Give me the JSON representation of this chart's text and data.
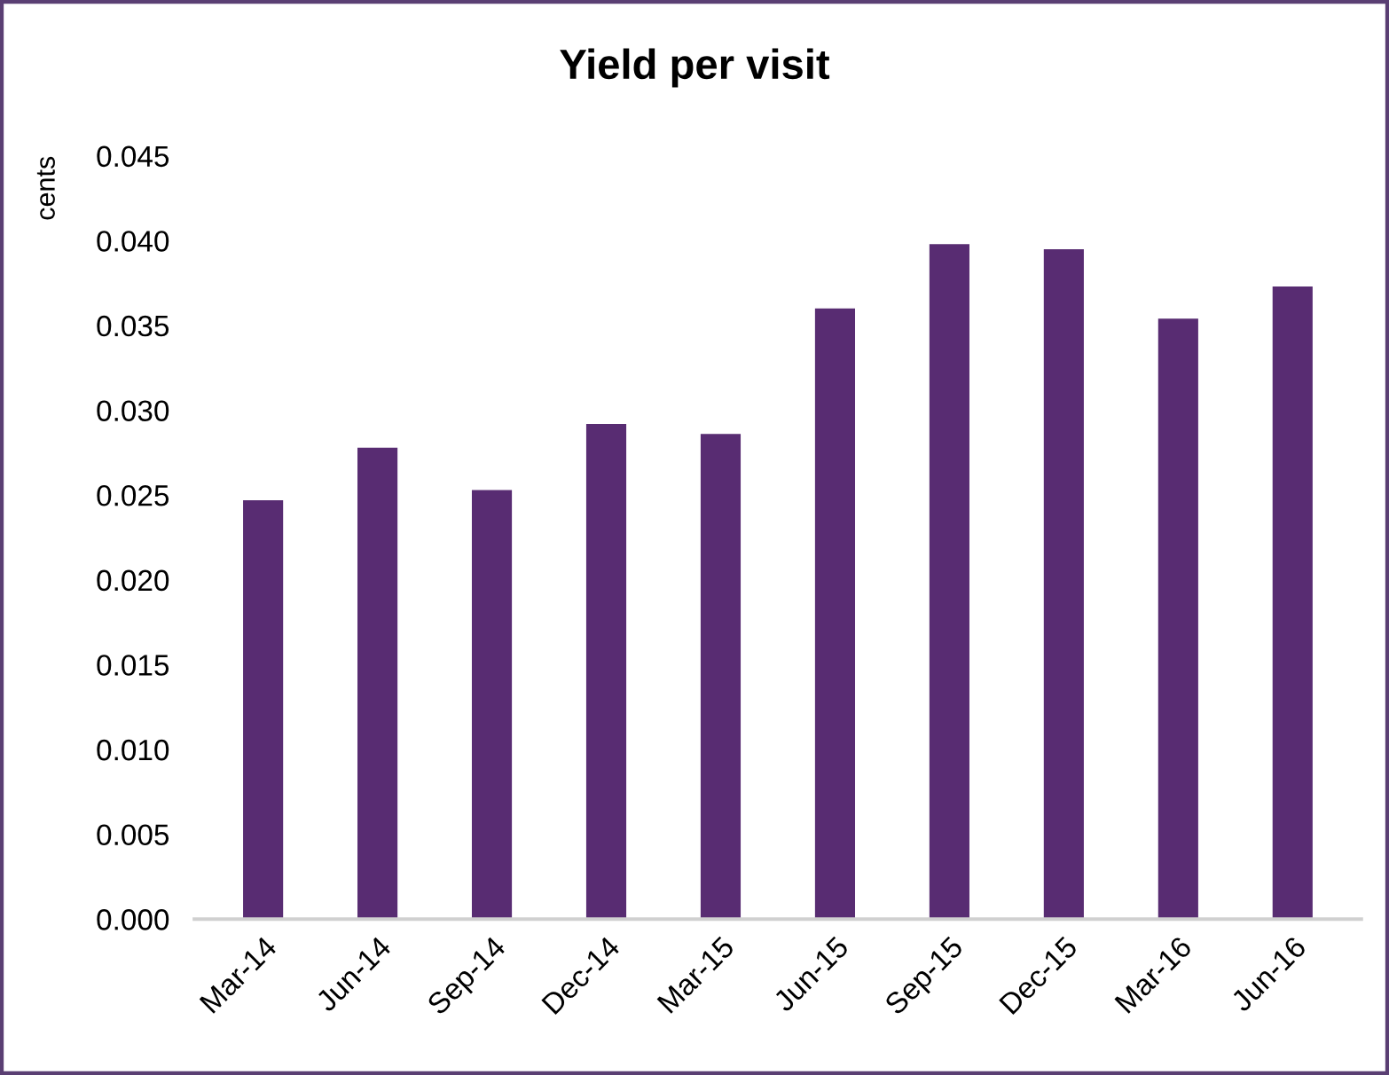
{
  "chart_data": {
    "type": "bar",
    "title": "Yield per visit",
    "ylabel": "cents",
    "categories": [
      "Mar-14",
      "Jun-14",
      "Sep-14",
      "Dec-14",
      "Mar-15",
      "Jun-15",
      "Sep-15",
      "Dec-15",
      "Mar-16",
      "Jun-16"
    ],
    "values": [
      0.0247,
      0.0278,
      0.0253,
      0.0292,
      0.0286,
      0.036,
      0.0398,
      0.0395,
      0.0354,
      0.0373
    ],
    "color": "#582c72",
    "ylim": [
      0,
      0.045
    ],
    "yticks": [
      {
        "value": 0,
        "label": "0.000"
      },
      {
        "value": 0.005,
        "label": "0.005"
      },
      {
        "value": 0.01,
        "label": "0.010"
      },
      {
        "value": 0.015,
        "label": "0.015"
      },
      {
        "value": 0.02,
        "label": "0.020"
      },
      {
        "value": 0.025,
        "label": "0.025"
      },
      {
        "value": 0.03,
        "label": "0.030"
      },
      {
        "value": 0.035,
        "label": "0.035"
      },
      {
        "value": 0.04,
        "label": "0.040"
      },
      {
        "value": 0.045,
        "label": "0.045"
      }
    ],
    "grid": false,
    "legend": false
  }
}
